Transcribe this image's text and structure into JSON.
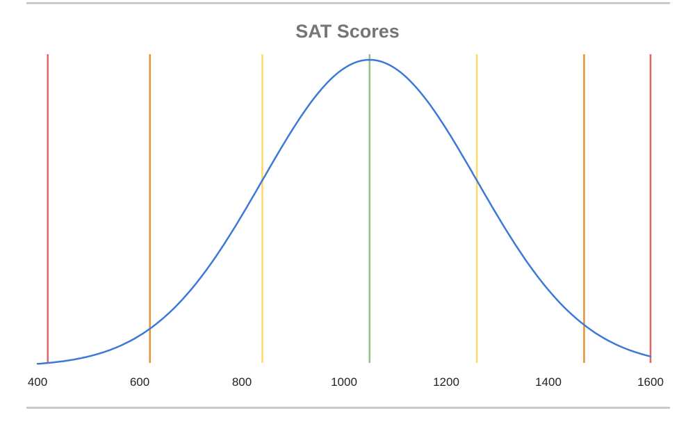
{
  "chart_data": {
    "type": "line",
    "title": "SAT Scores",
    "xlabel": "",
    "ylabel": "",
    "xlim": [
      400,
      1600
    ],
    "xticks": [
      "400",
      "600",
      "800",
      "1000",
      "1200",
      "1400",
      "1600"
    ],
    "grid": false,
    "legend": "none",
    "curve": {
      "kind": "normal distribution",
      "mean": 1050,
      "sd": 210,
      "color": "#3c78d8"
    },
    "series": [
      {
        "x": [
          410,
          450,
          500,
          550,
          600,
          650,
          700,
          750,
          800,
          850,
          900,
          950,
          1000,
          1050,
          1100,
          1150,
          1200,
          1250,
          1300,
          1350,
          1400,
          1450,
          1500,
          1550,
          1600
        ],
        "values": [
          0.01,
          0.02,
          0.03,
          0.06,
          0.1,
          0.16,
          0.25,
          0.36,
          0.49,
          0.64,
          0.77,
          0.89,
          0.97,
          1.0,
          0.97,
          0.89,
          0.77,
          0.64,
          0.49,
          0.36,
          0.25,
          0.16,
          0.1,
          0.06,
          0.03
        ]
      }
    ],
    "reference_lines": [
      {
        "x": 420,
        "color": "#e06666"
      },
      {
        "x": 620,
        "color": "#e69138"
      },
      {
        "x": 840,
        "color": "#ffd966"
      },
      {
        "x": 1050,
        "color": "#93c47d"
      },
      {
        "x": 1260,
        "color": "#ffd966"
      },
      {
        "x": 1470,
        "color": "#e69138"
      },
      {
        "x": 1600,
        "color": "#e06666"
      }
    ]
  }
}
